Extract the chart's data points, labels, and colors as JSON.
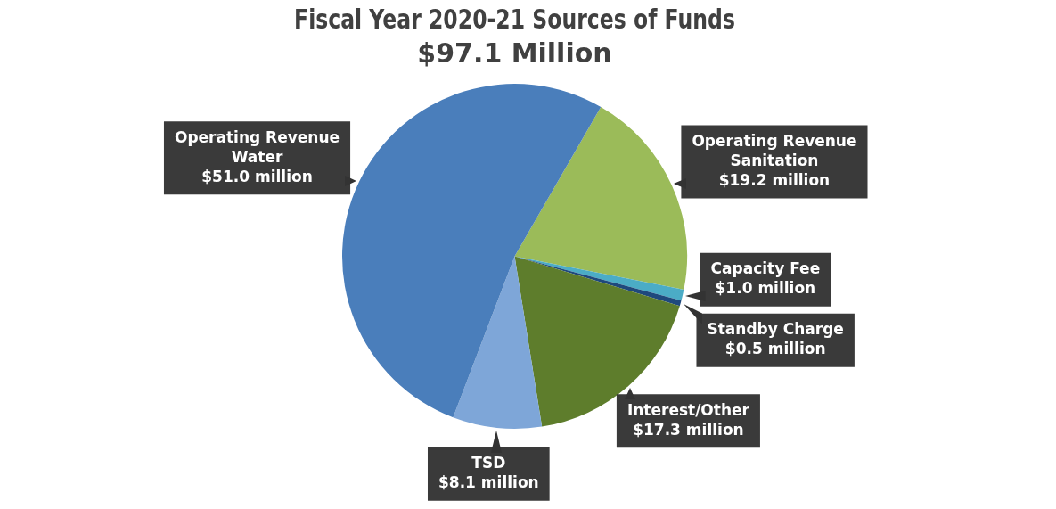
{
  "chart_data": {
    "type": "pie",
    "title": "Fiscal Year 2020-21 Sources of Funds",
    "subtitle": "$97.1 Million",
    "categories": [
      "Operating Revenue Sanitation",
      "Capacity Fee",
      "Standby Charge",
      "Interest/Other",
      "TSD",
      "Operating Revenue Water"
    ],
    "values": [
      19.2,
      1.0,
      0.5,
      17.3,
      8.1,
      51.0
    ],
    "colors": [
      "#9bbb59",
      "#4bacc6",
      "#1f497d",
      "#5e7d2c",
      "#7ea6d8",
      "#4a7ebb"
    ],
    "value_labels": [
      "$19.2 million",
      "$1.0 million",
      "$0.5 million",
      "$17.3 million",
      "$8.1 million",
      "$51.0 million"
    ],
    "legend": false
  }
}
